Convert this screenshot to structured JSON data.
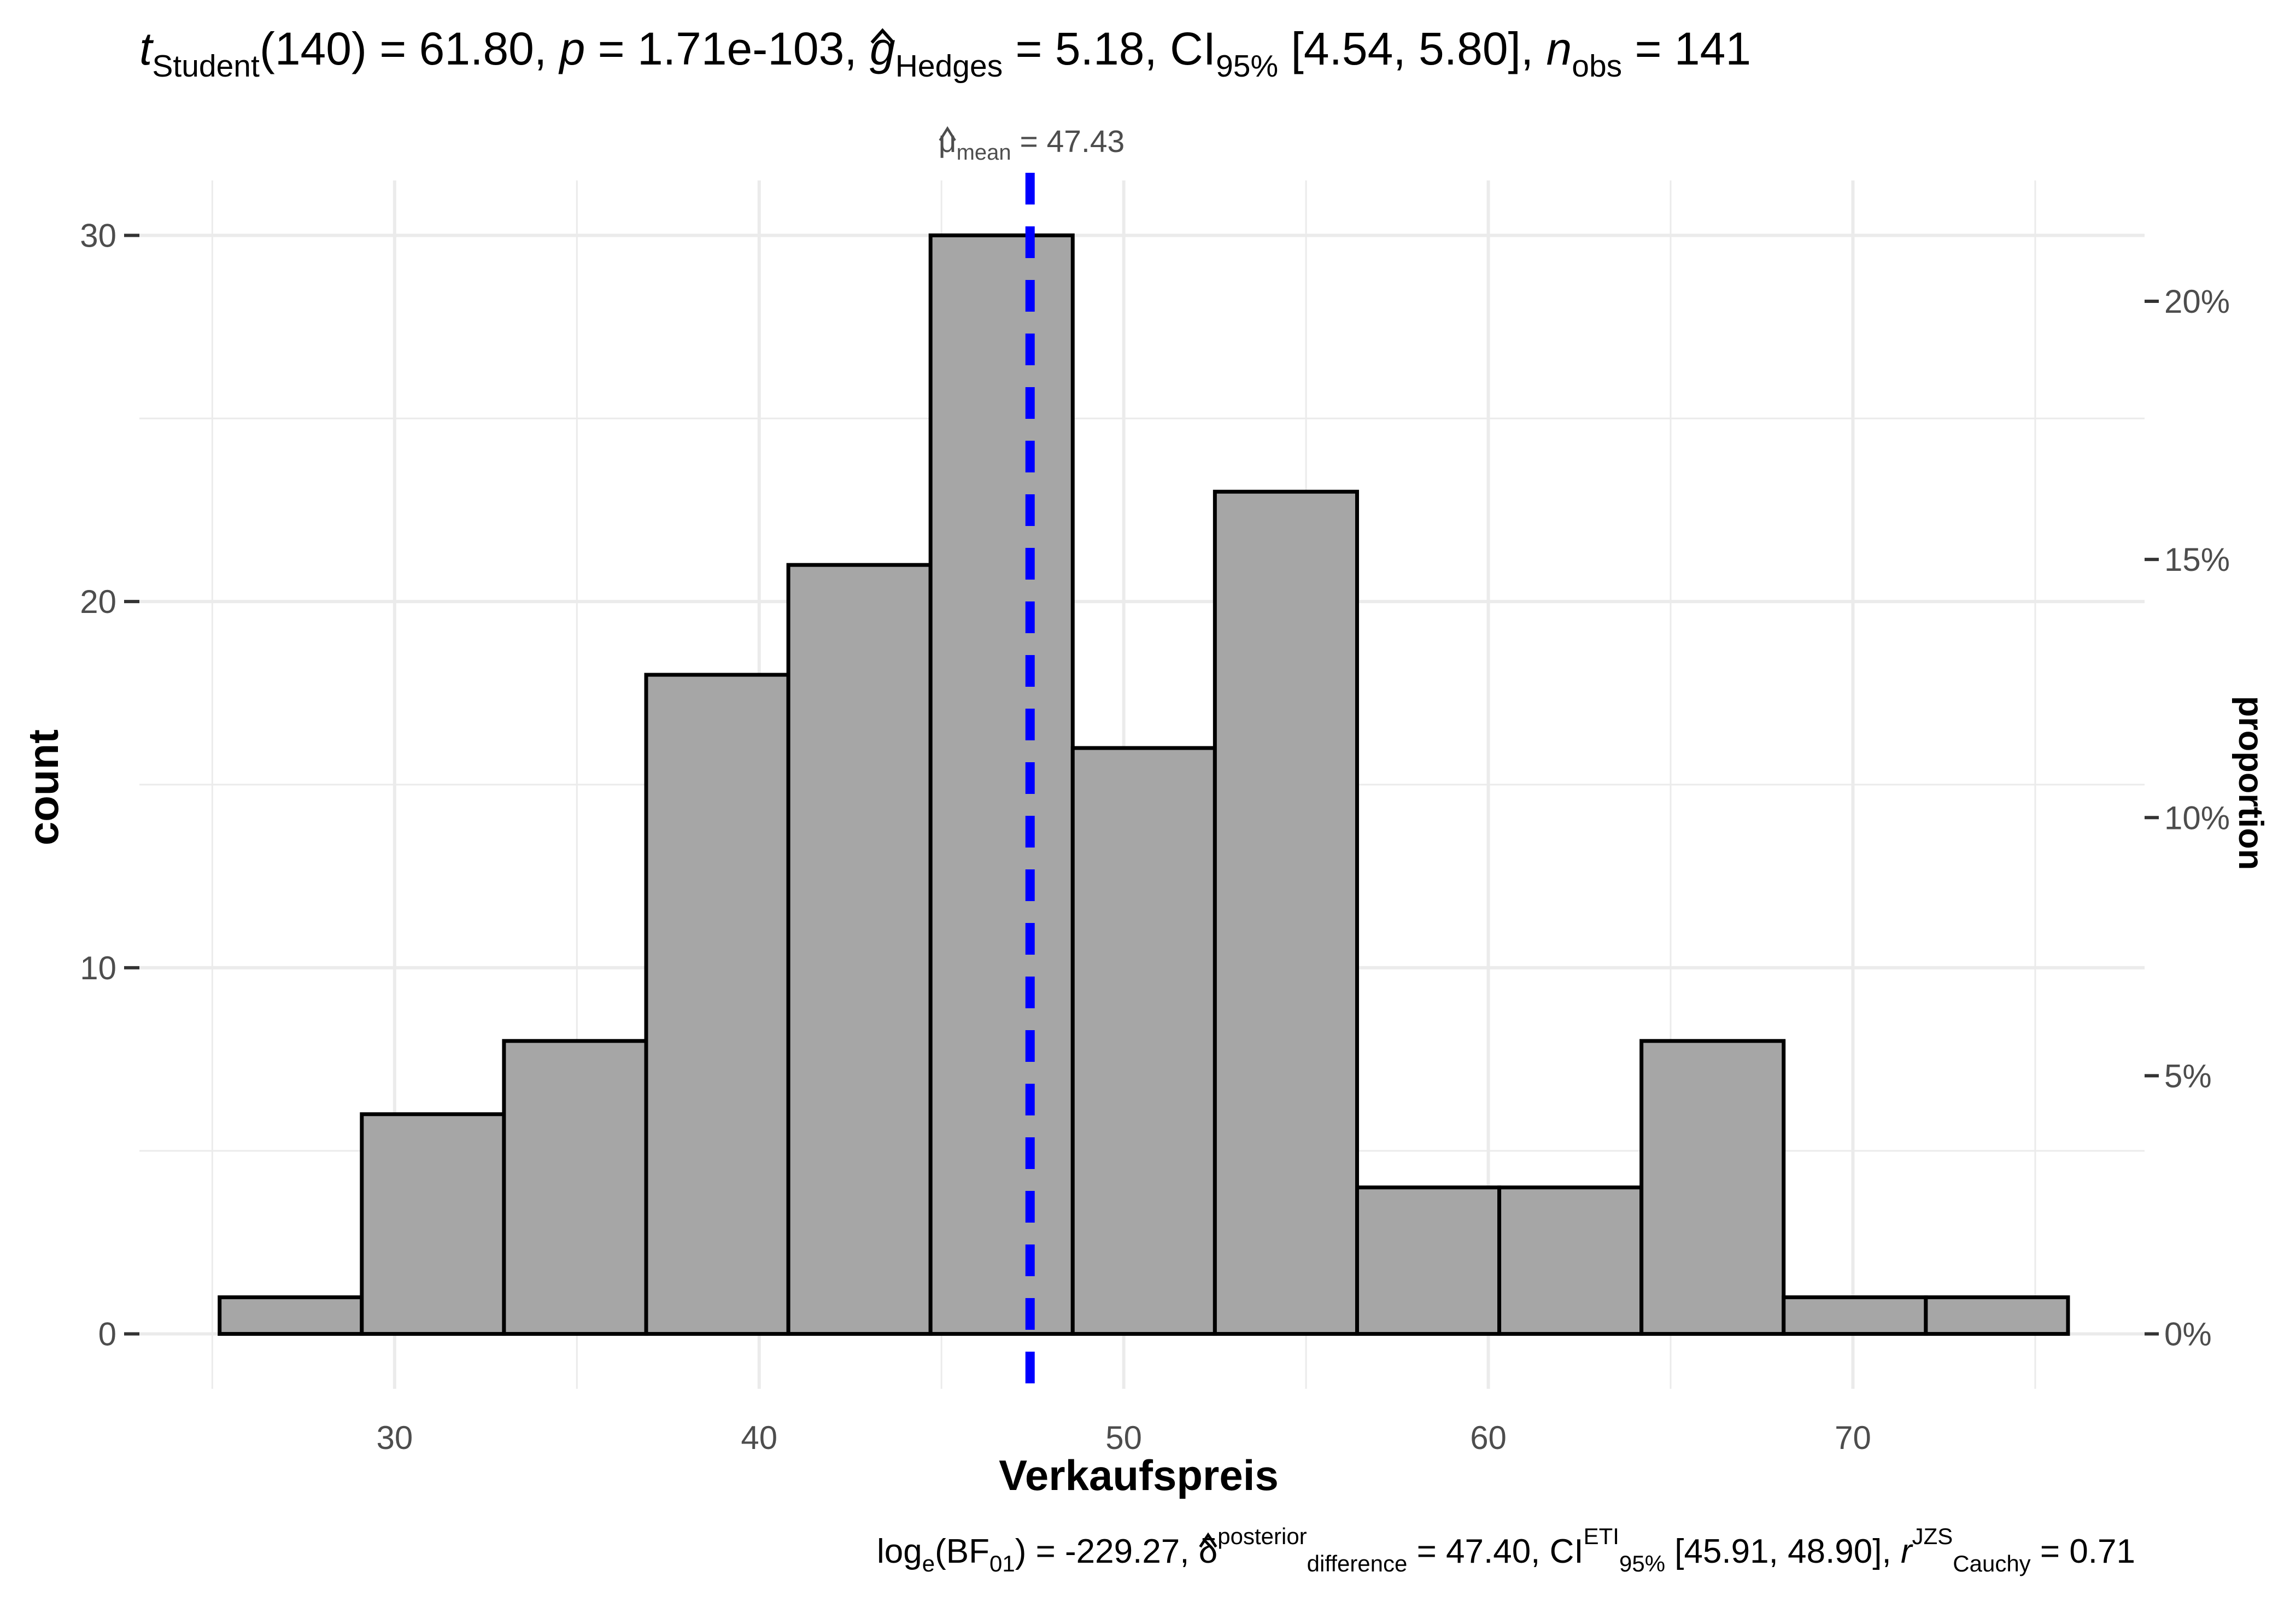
{
  "colors": {
    "bar_fill": "#a6a6a6",
    "bar_stroke": "#000000",
    "mean_line": "#0000ff",
    "grid": "#ebebeb",
    "text": "#4d4d4d"
  },
  "stats_top": {
    "t_sym": "t",
    "t_sub": "Student",
    "t_val": "(140) = 61.80, ",
    "p_sym": "p",
    "p_val": " = 1.71e-103, ",
    "g_sym": "g",
    "g_sub": "Hedges",
    "g_val": " = 5.18, CI",
    "ci_sub": "95%",
    "ci_val": " [4.54, 5.80], ",
    "n_sym": "n",
    "n_sub": "obs",
    "n_val": " = 141"
  },
  "stats_bottom": {
    "log": "log",
    "log_sub": "e",
    "bf": "(BF",
    "bf_sub": "01",
    "bf_val": ") = -229.27, ",
    "delta": "δ",
    "delta_sup": "posterior",
    "delta_sub": "difference",
    "delta_val": " = 47.40, CI",
    "ci_sup": "ETI",
    "ci_sub": "95%",
    "ci_val": " [45.91, 48.90], ",
    "r": "r",
    "r_sup": "JZS",
    "r_sub": "Cauchy",
    "r_val": " = 0.71"
  },
  "mean_label": {
    "sym": "μ",
    "sub": "mean",
    "val": " = 47.43"
  },
  "chart_data": {
    "type": "bar",
    "subtype": "histogram",
    "xlabel": "Verkaufspreis",
    "ylabel": "count",
    "y2label": "proportion",
    "n": 141,
    "xlim": [
      23.0,
      78.0
    ],
    "ylim": [
      -1.5,
      31.5
    ],
    "x_ticks": [
      30,
      40,
      50,
      60,
      70
    ],
    "y_ticks": [
      0,
      10,
      20,
      30
    ],
    "y2_ticks": [
      {
        "value": 0.0,
        "label": "0%"
      },
      {
        "value": 0.05,
        "label": "5%"
      },
      {
        "value": 0.1,
        "label": "10%"
      },
      {
        "value": 0.15,
        "label": "15%"
      },
      {
        "value": 0.2,
        "label": "20%"
      }
    ],
    "bin_edges": [
      25.2,
      29.1,
      33.0,
      36.9,
      40.8,
      44.7,
      48.6,
      52.5,
      56.4,
      60.3,
      64.2,
      68.1,
      72.0,
      75.9
    ],
    "counts": [
      1,
      6,
      8,
      18,
      21,
      30,
      16,
      23,
      4,
      4,
      8,
      1,
      1
    ],
    "mean": 47.43,
    "grid": true
  }
}
